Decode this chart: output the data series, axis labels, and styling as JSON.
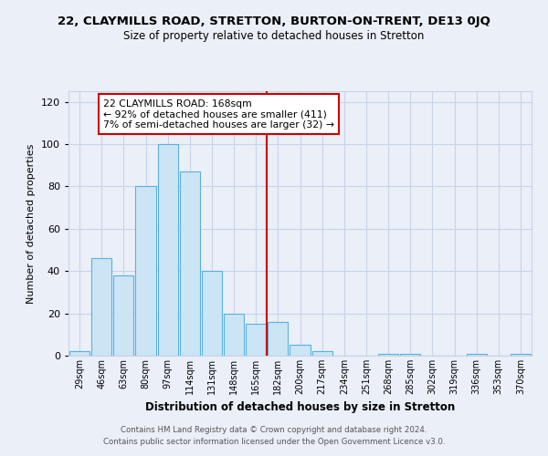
{
  "title_line1": "22, CLAYMILLS ROAD, STRETTON, BURTON-ON-TRENT, DE13 0JQ",
  "title_line2": "Size of property relative to detached houses in Stretton",
  "xlabel": "Distribution of detached houses by size in Stretton",
  "ylabel": "Number of detached properties",
  "bar_labels": [
    "29sqm",
    "46sqm",
    "63sqm",
    "80sqm",
    "97sqm",
    "114sqm",
    "131sqm",
    "148sqm",
    "165sqm",
    "182sqm",
    "200sqm",
    "217sqm",
    "234sqm",
    "251sqm",
    "268sqm",
    "285sqm",
    "302sqm",
    "319sqm",
    "336sqm",
    "353sqm",
    "370sqm"
  ],
  "bar_heights": [
    2,
    46,
    38,
    80,
    100,
    87,
    40,
    20,
    15,
    16,
    5,
    2,
    0,
    0,
    1,
    1,
    0,
    0,
    1,
    0,
    1
  ],
  "bar_color": "#cce5f5",
  "bar_edge_color": "#5ab0e0",
  "vline_x_index": 8.5,
  "vline_color": "#cc0000",
  "annotation_box_text": "22 CLAYMILLS ROAD: 168sqm\n← 92% of detached houses are smaller (411)\n7% of semi-detached houses are larger (32) →",
  "ylim": [
    0,
    125
  ],
  "yticks": [
    0,
    20,
    40,
    60,
    80,
    100,
    120
  ],
  "grid_color": "#c8d4e8",
  "background_color": "#eaeff8",
  "footer_line1": "Contains HM Land Registry data © Crown copyright and database right 2024.",
  "footer_line2": "Contains public sector information licensed under the Open Government Licence v3.0."
}
